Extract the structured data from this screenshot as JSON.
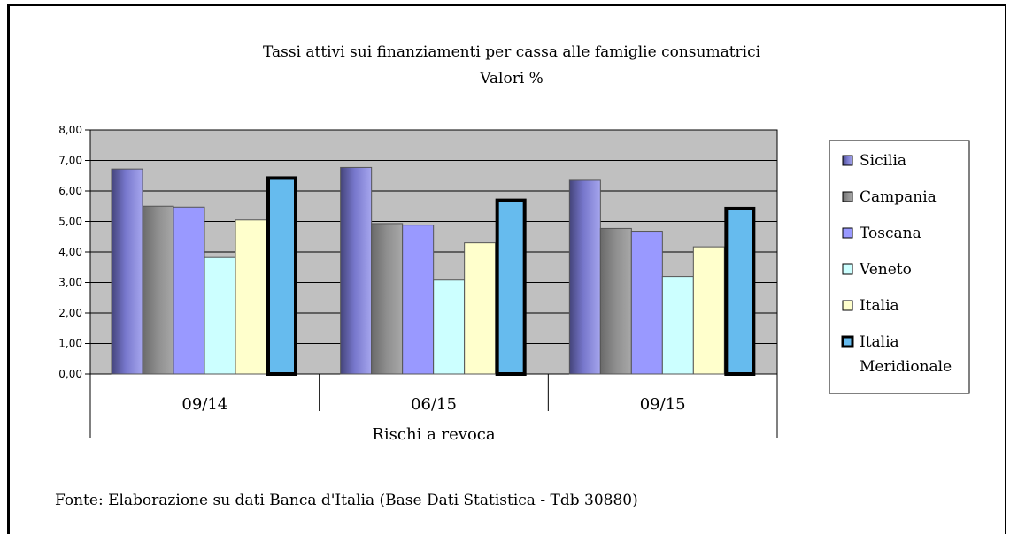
{
  "chart_data": {
    "type": "bar",
    "title": "Tassi attivi sui finanziamenti per cassa alle famiglie consumatrici",
    "subtitle": "Valori %",
    "xlabel": "Rischi a revoca",
    "ylabel": "",
    "categories": [
      "09/14",
      "06/15",
      "09/15"
    ],
    "ylim": [
      0,
      8
    ],
    "yticks": [
      "0,00",
      "1,00",
      "2,00",
      "3,00",
      "4,00",
      "5,00",
      "6,00",
      "7,00",
      "8,00"
    ],
    "grid": true,
    "legend_position": "right",
    "series": [
      {
        "name": "Sicilia",
        "values": [
          6.72,
          6.77,
          6.35
        ],
        "color": "#7777cc",
        "style": "gradient"
      },
      {
        "name": "Campania",
        "values": [
          5.5,
          4.93,
          4.77
        ],
        "color": "#8f8f8f",
        "style": "gradient"
      },
      {
        "name": "Toscana",
        "values": [
          5.47,
          4.88,
          4.68
        ],
        "color": "#9999ff",
        "style": "plain"
      },
      {
        "name": "Veneto",
        "values": [
          3.82,
          3.08,
          3.2
        ],
        "color": "#ccffff",
        "style": "plain"
      },
      {
        "name": "Italia",
        "values": [
          5.05,
          4.3,
          4.17
        ],
        "color": "#ffffcc",
        "style": "plain"
      },
      {
        "name_lines": [
          "Italia",
          "Meridionale"
        ],
        "values": [
          6.48,
          5.75,
          5.48
        ],
        "color": "#66bbee",
        "style": "thick"
      }
    ]
  },
  "footer": {
    "source": "Fonte: Elaborazione su dati Banca d'Italia (Base Dati Statistica - Tdb 30880)"
  }
}
